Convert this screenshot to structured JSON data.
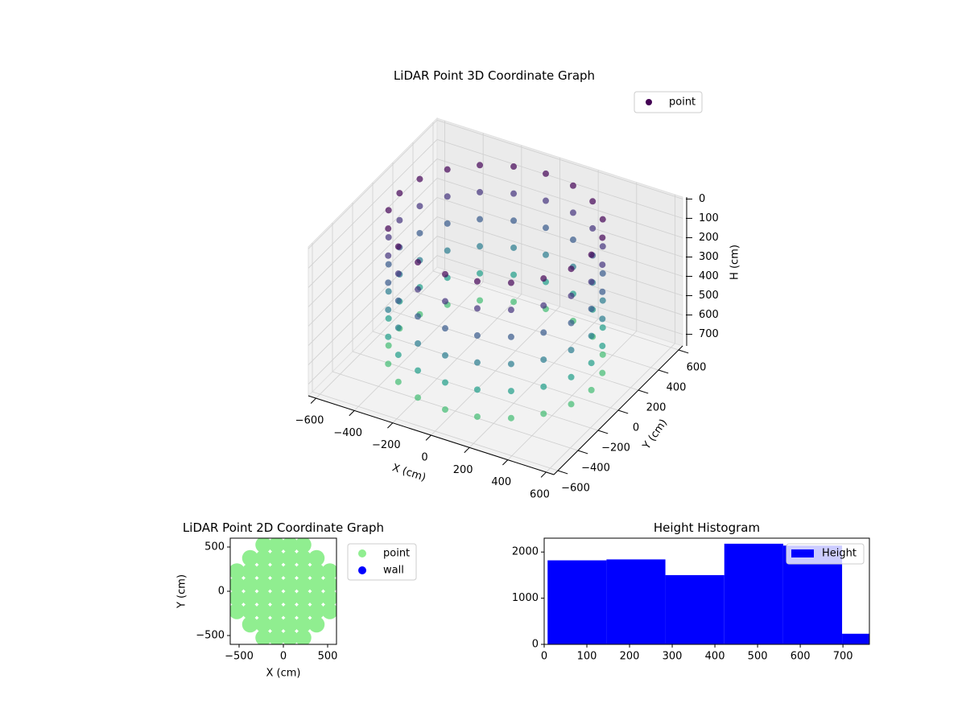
{
  "chart_data": [
    {
      "type": "scatter3d",
      "title": "LiDAR Point 3D Coordinate Graph",
      "xlabel": "X (cm)",
      "ylabel": "Y (cm)",
      "zlabel": "H (cm)",
      "xlim": [
        -640,
        640
      ],
      "ylim": [
        -640,
        640
      ],
      "zlim": [
        760,
        -10
      ],
      "xticks": [
        {
          "value": -600,
          "label": "−600"
        },
        {
          "value": -400,
          "label": "−400"
        },
        {
          "value": -200,
          "label": "−200"
        },
        0,
        200,
        400,
        600
      ],
      "yticks": [
        {
          "value": -600,
          "label": "−600"
        },
        {
          "value": -400,
          "label": "−400"
        },
        {
          "value": -200,
          "label": "−200"
        },
        0,
        200,
        400,
        600
      ],
      "zticks": [
        0,
        100,
        200,
        300,
        400,
        500,
        600,
        700
      ],
      "colormap": "viridis",
      "grid": true,
      "legend": "upper right",
      "series": [
        {
          "name": "point",
          "color": "#440154",
          "x": [
            500,
            476,
            405,
            294,
            155,
            0,
            -155,
            -294,
            -405,
            -476,
            -500,
            -476,
            -405,
            -294,
            -155,
            0,
            155,
            294,
            405,
            476,
            500,
            476,
            405,
            294,
            155,
            0,
            -155,
            -294,
            -405,
            -476,
            -500,
            -476,
            -405,
            -294,
            -155,
            0,
            155,
            294,
            405,
            476,
            500,
            476,
            405,
            294,
            155,
            0,
            -155,
            -294,
            -405,
            -476,
            -500,
            -476,
            -405,
            -294,
            -155,
            0,
            155,
            294,
            405,
            476,
            500,
            476,
            405,
            294,
            155,
            0,
            -155,
            -294,
            -405,
            -476,
            -500,
            -476,
            -405,
            -294,
            -155,
            0,
            155,
            294,
            405,
            476,
            500,
            476,
            405,
            294,
            155,
            0,
            -155,
            -294,
            -405,
            -476,
            -500,
            -476,
            -405,
            -294,
            -155,
            0,
            155,
            294,
            405,
            476,
            500,
            476,
            405,
            294,
            155,
            0,
            -155,
            -294,
            -405,
            -476,
            -500,
            -476,
            -405,
            -294,
            -155,
            0,
            155,
            294,
            405,
            476
          ],
          "y": [
            0,
            155,
            294,
            405,
            476,
            500,
            476,
            405,
            294,
            155,
            0,
            -155,
            -294,
            -405,
            -476,
            -500,
            -476,
            -405,
            -294,
            -155,
            0,
            155,
            294,
            405,
            476,
            500,
            476,
            405,
            294,
            155,
            0,
            -155,
            -294,
            -405,
            -476,
            -500,
            -476,
            -405,
            -294,
            -155,
            0,
            155,
            294,
            405,
            476,
            500,
            476,
            405,
            294,
            155,
            0,
            -155,
            -294,
            -405,
            -476,
            -500,
            -476,
            -405,
            -294,
            -155,
            0,
            155,
            294,
            405,
            476,
            500,
            476,
            405,
            294,
            155,
            0,
            -155,
            -294,
            -405,
            -476,
            -500,
            -476,
            -405,
            -294,
            -155,
            0,
            155,
            294,
            405,
            476,
            500,
            476,
            405,
            294,
            155,
            0,
            -155,
            -294,
            -405,
            -476,
            -500,
            -476,
            -405,
            -294,
            -155,
            0,
            155,
            294,
            405,
            476,
            500,
            476,
            405,
            294,
            155,
            0,
            -155,
            -294,
            -405,
            -476,
            -500,
            -476,
            -405,
            -294,
            -155
          ],
          "z": [
            0,
            0,
            0,
            0,
            0,
            0,
            0,
            0,
            0,
            0,
            0,
            0,
            0,
            0,
            0,
            0,
            0,
            0,
            0,
            0,
            140,
            140,
            140,
            140,
            140,
            140,
            140,
            140,
            140,
            140,
            140,
            140,
            140,
            140,
            140,
            140,
            140,
            140,
            140,
            140,
            280,
            280,
            280,
            280,
            280,
            280,
            280,
            280,
            280,
            280,
            280,
            280,
            280,
            280,
            280,
            280,
            280,
            280,
            280,
            280,
            420,
            420,
            420,
            420,
            420,
            420,
            420,
            420,
            420,
            420,
            420,
            420,
            420,
            420,
            420,
            420,
            420,
            420,
            420,
            420,
            560,
            560,
            560,
            560,
            560,
            560,
            560,
            560,
            560,
            560,
            560,
            560,
            560,
            560,
            560,
            560,
            560,
            560,
            560,
            560,
            700,
            700,
            700,
            700,
            700,
            700,
            700,
            700,
            700,
            700,
            700,
            700,
            700,
            700,
            700,
            700,
            700,
            700,
            700,
            700
          ]
        }
      ]
    },
    {
      "type": "scatter",
      "title": "LiDAR Point 2D Coordinate Graph",
      "xlabel": "X (cm)",
      "ylabel": "Y (cm)",
      "xlim": [
        -600,
        600
      ],
      "ylim": [
        -600,
        600
      ],
      "xticks": [
        {
          "value": -500,
          "label": "−500"
        },
        0,
        500
      ],
      "yticks": [
        {
          "value": -500,
          "label": "−500"
        },
        0,
        500
      ],
      "legend": "outside right",
      "series": [
        {
          "name": "point",
          "color": "#90ee90",
          "x": [
            -225,
            -75,
            75,
            225,
            -375,
            -225,
            -75,
            75,
            225,
            375,
            -525,
            -375,
            -225,
            -75,
            75,
            225,
            375,
            525,
            -525,
            -375,
            -225,
            -75,
            75,
            225,
            375,
            525,
            -525,
            -375,
            -225,
            -75,
            75,
            225,
            375,
            525,
            -525,
            -375,
            -225,
            -75,
            75,
            225,
            375,
            525,
            -375,
            -225,
            -75,
            75,
            225,
            375,
            -225,
            -75,
            75,
            225
          ],
          "y": [
            -525,
            -525,
            -525,
            -525,
            -375,
            -375,
            -375,
            -375,
            -375,
            -375,
            -225,
            -225,
            -225,
            -225,
            -225,
            -225,
            -225,
            -225,
            -75,
            -75,
            -75,
            -75,
            -75,
            -75,
            -75,
            -75,
            75,
            75,
            75,
            75,
            75,
            75,
            75,
            75,
            225,
            225,
            225,
            225,
            225,
            225,
            225,
            225,
            375,
            375,
            375,
            375,
            375,
            375,
            525,
            525,
            525,
            525
          ]
        },
        {
          "name": "wall",
          "color": "#0000ff",
          "x": [],
          "y": []
        }
      ]
    },
    {
      "type": "histogram",
      "title": "Height Histogram",
      "bins": [
        8,
        146,
        284,
        422,
        560,
        698,
        836
      ],
      "xlim": [
        0,
        762
      ],
      "ylim": [
        0,
        2300
      ],
      "xticks": [
        0,
        100,
        200,
        300,
        400,
        500,
        600,
        700
      ],
      "yticks": [
        0,
        1000,
        2000
      ],
      "legend": "upper right",
      "series": [
        {
          "name": "Height",
          "color": "#0000ff",
          "values": [
            1820,
            1840,
            1500,
            2180,
            2140,
            230
          ]
        }
      ]
    }
  ]
}
